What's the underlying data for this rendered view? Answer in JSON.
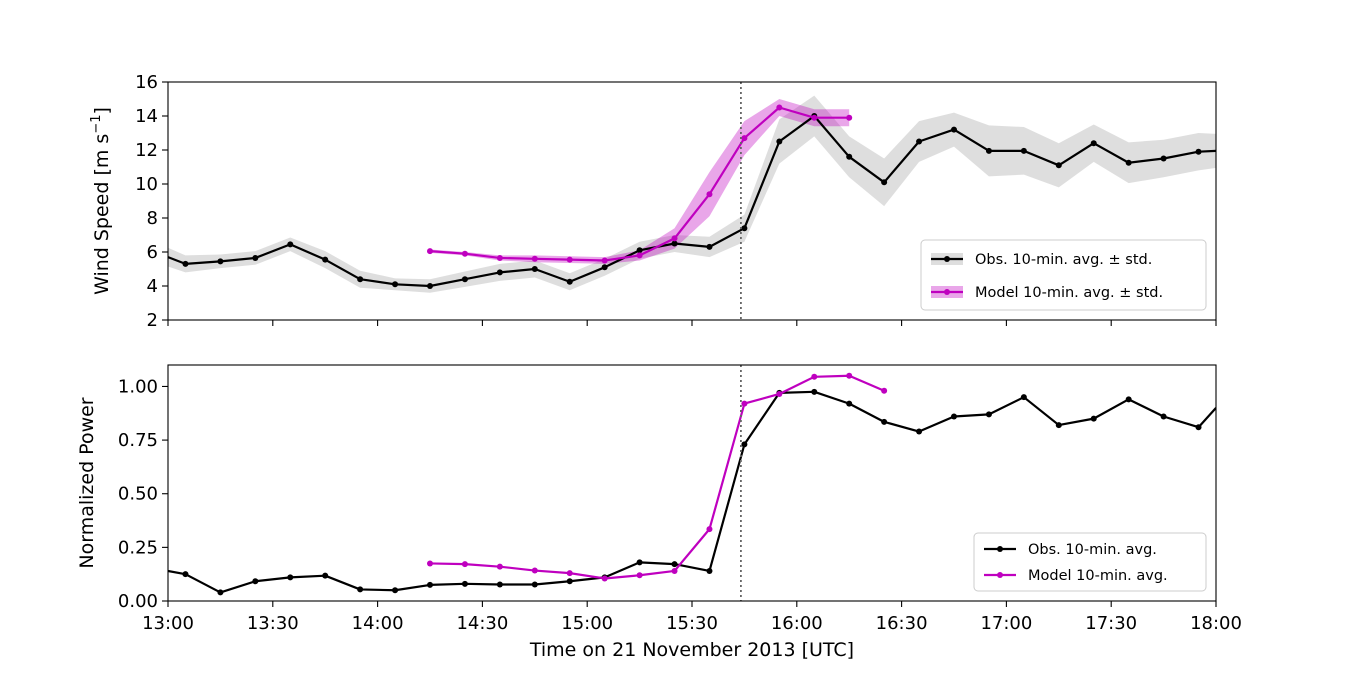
{
  "chart_data": [
    {
      "type": "line",
      "ylabel": "Wind Speed [m s",
      "ylabel_sup": "−1",
      "ylabel_end": "]",
      "ylim": [
        2,
        16
      ],
      "yticks": [
        2,
        4,
        6,
        8,
        10,
        12,
        14,
        16
      ],
      "xlim": [
        "13:00",
        "18:00"
      ],
      "xtick_labels_shown": false,
      "vline_time": "15:44",
      "legend_position": "lower-right",
      "grid": false,
      "colors": {
        "obs": "#000000",
        "model": "#bf00bf",
        "obs_band": "#c8c8c8",
        "model_band": "#bf00bf"
      },
      "series": [
        {
          "name": "Obs. 10-min. avg. ± std.",
          "times": [
            "13:00",
            "13:05",
            "13:15",
            "13:25",
            "13:35",
            "13:45",
            "13:55",
            "14:05",
            "14:15",
            "14:25",
            "14:35",
            "14:45",
            "14:55",
            "15:05",
            "15:15",
            "15:25",
            "15:35",
            "15:45",
            "15:55",
            "16:05",
            "16:15",
            "16:25",
            "16:35",
            "16:45",
            "16:55",
            "17:05",
            "17:15",
            "17:25",
            "17:35",
            "17:45",
            "17:55",
            "18:00"
          ],
          "values": [
            5.7,
            5.3,
            5.45,
            5.65,
            6.45,
            5.55,
            4.4,
            4.1,
            4.0,
            4.4,
            4.8,
            5.0,
            4.25,
            5.1,
            6.1,
            6.5,
            6.3,
            7.4,
            12.5,
            14.0,
            11.6,
            10.1,
            12.5,
            13.2,
            11.95,
            11.95,
            11.1,
            12.4,
            11.25,
            11.5,
            11.9,
            11.95
          ],
          "std": [
            0.55,
            0.5,
            0.4,
            0.4,
            0.4,
            0.5,
            0.5,
            0.35,
            0.4,
            0.45,
            0.5,
            0.5,
            0.5,
            0.5,
            0.5,
            0.5,
            0.6,
            0.8,
            1.3,
            1.2,
            1.2,
            1.4,
            1.2,
            1.0,
            1.5,
            1.4,
            1.3,
            1.1,
            1.2,
            1.1,
            1.1,
            1.0
          ]
        },
        {
          "name": "Model 10-min. avg. ± std.",
          "times": [
            "14:15",
            "14:25",
            "14:35",
            "14:45",
            "14:55",
            "15:05",
            "15:15",
            "15:25",
            "15:35",
            "15:45",
            "15:55",
            "16:05",
            "16:15"
          ],
          "values": [
            6.05,
            5.9,
            5.65,
            5.6,
            5.55,
            5.5,
            5.8,
            6.8,
            9.4,
            12.7,
            14.5,
            13.9,
            13.9
          ],
          "std": [
            0.1,
            0.1,
            0.15,
            0.2,
            0.2,
            0.2,
            0.3,
            0.6,
            1.3,
            1.0,
            0.5,
            0.5,
            0.5
          ]
        }
      ]
    },
    {
      "type": "line",
      "ylabel": "Normalized Power",
      "xlabel": "Time on 21 November 2013 [UTC]",
      "ylim": [
        0,
        1.1
      ],
      "yticks": [
        "0.00",
        "0.25",
        "0.50",
        "0.75",
        "1.00"
      ],
      "xlim": [
        "13:00",
        "18:00"
      ],
      "xticks": [
        "13:00",
        "13:30",
        "14:00",
        "14:30",
        "15:00",
        "15:30",
        "16:00",
        "16:30",
        "17:00",
        "17:30",
        "18:00"
      ],
      "vline_time": "15:44",
      "legend_position": "lower-right",
      "grid": false,
      "series": [
        {
          "name": "Obs. 10-min. avg.",
          "times": [
            "13:00",
            "13:05",
            "13:15",
            "13:25",
            "13:35",
            "13:45",
            "13:55",
            "14:05",
            "14:15",
            "14:25",
            "14:35",
            "14:45",
            "14:55",
            "15:05",
            "15:15",
            "15:25",
            "15:35",
            "15:45",
            "15:55",
            "16:05",
            "16:15",
            "16:25",
            "16:35",
            "16:45",
            "16:55",
            "17:05",
            "17:15",
            "17:25",
            "17:35",
            "17:45",
            "17:55",
            "18:00"
          ],
          "values": [
            0.14,
            0.125,
            0.04,
            0.092,
            0.11,
            0.118,
            0.054,
            0.05,
            0.075,
            0.08,
            0.077,
            0.077,
            0.092,
            0.11,
            0.18,
            0.172,
            0.14,
            0.73,
            0.97,
            0.975,
            0.92,
            0.835,
            0.79,
            0.86,
            0.87,
            0.95,
            0.82,
            0.85,
            0.94,
            0.86,
            0.81,
            0.9
          ]
        },
        {
          "name": "Model 10-min. avg.",
          "times": [
            "14:15",
            "14:25",
            "14:35",
            "14:45",
            "14:55",
            "15:05",
            "15:15",
            "15:25",
            "15:35",
            "15:45",
            "15:55",
            "16:05",
            "16:15",
            "16:25"
          ],
          "values": [
            0.175,
            0.172,
            0.16,
            0.142,
            0.13,
            0.105,
            0.12,
            0.14,
            0.335,
            0.92,
            0.965,
            1.045,
            1.05,
            0.98
          ]
        }
      ]
    }
  ]
}
